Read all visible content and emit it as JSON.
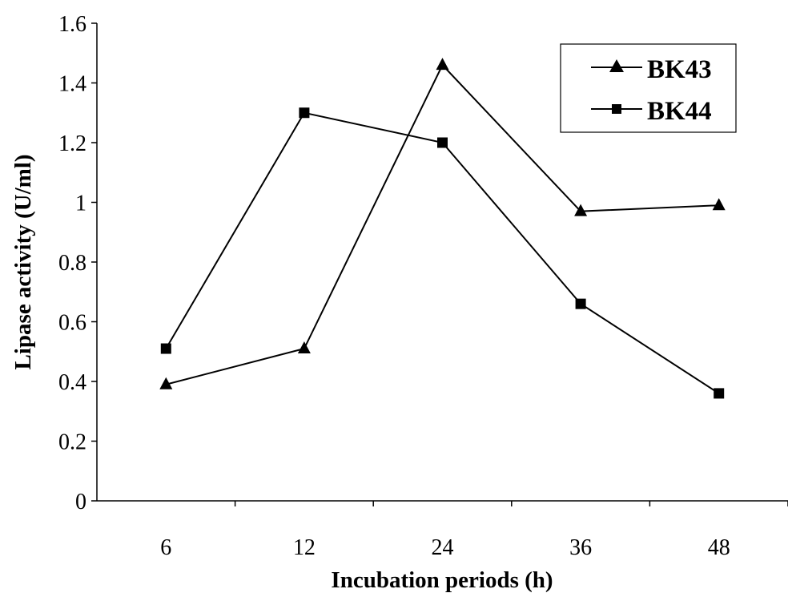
{
  "chart_data": {
    "type": "line",
    "title": "",
    "xlabel": "Incubation periods (h)",
    "ylabel": "Lipase activity  (U/ml)",
    "categories": [
      "6",
      "12",
      "24",
      "36",
      "48"
    ],
    "ylim": [
      0,
      1.6
    ],
    "yticks": [
      "0",
      "0.2",
      "0.4",
      "0.6",
      "0.8",
      "1",
      "1.2",
      "1.4",
      "1.6"
    ],
    "grid": false,
    "legend_position": "top-right",
    "series": [
      {
        "name": "BK43",
        "marker": "triangle",
        "color": "#000000",
        "values": [
          0.39,
          0.51,
          1.46,
          0.97,
          0.99
        ]
      },
      {
        "name": "BK44",
        "marker": "square",
        "color": "#000000",
        "values": [
          0.51,
          1.3,
          1.2,
          0.66,
          0.36
        ]
      }
    ]
  }
}
